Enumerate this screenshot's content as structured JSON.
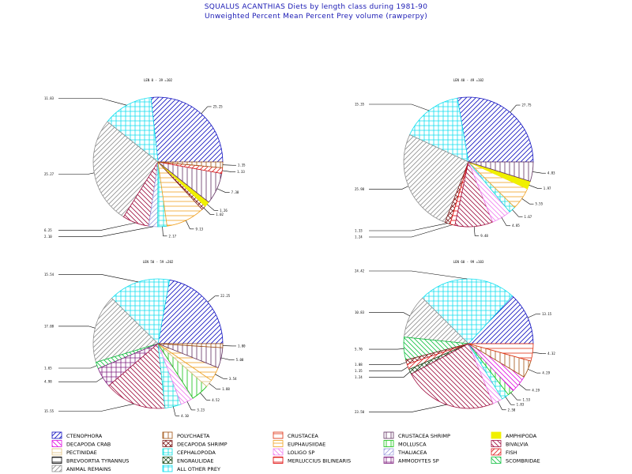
{
  "header": {
    "title": "SQUALUS ACANTHIAS Diets by length class during 1981-90",
    "subtitle": "Unweighted Percent Mean Percent Prey  volume (rawperpy)"
  },
  "colors": {
    "title": "#1a1ab4",
    "CTENOPHORA": "#1010c0",
    "POLYCHAETA": "#a05010",
    "CRUSTACEA": "#e03010",
    "CRUSTACEA SHRIMP": "#603060",
    "AMPHIPODA": "#f0f000",
    "DECAPODA CRAB": "#e010e0",
    "DECAPODA SHRIMP": "#802020",
    "EUPHAUSIIDAE": "#f0a020",
    "MOLLUSCA": "#10c010",
    "BIVALVIA": "#a01040",
    "PECTINIDAE": "#e0c080",
    "CEPHALOPODA": "#10e0e0",
    "LOLIGO SP": "#f080f0",
    "THALIACEA": "#a0a0e0",
    "FISH": "#e02020",
    "BREVOORTIA TYRANNUS": "#000000",
    "ENGRAULIDAE": "#205020",
    "MERLUCCIUS BILINEARIS": "#e00000",
    "AMMODYTES SP": "#802080",
    "SCOMBRIDAE": "#10c040",
    "ANIMAL REMAINS": "#909090",
    "ALL OTHER PREY": "#10e0f0"
  },
  "legend": [
    {
      "name": "CTENOPHORA",
      "pattern": "diag"
    },
    {
      "name": "POLYCHAETA",
      "pattern": "vert"
    },
    {
      "name": "CRUSTACEA",
      "pattern": "horiz"
    },
    {
      "name": "CRUSTACEA SHRIMP",
      "pattern": "vert"
    },
    {
      "name": "AMPHIPODA",
      "pattern": "solid"
    },
    {
      "name": "DECAPODA CRAB",
      "pattern": "diag2"
    },
    {
      "name": "DECAPODA SHRIMP",
      "pattern": "cross"
    },
    {
      "name": "EUPHAUSIIDAE",
      "pattern": "horiz"
    },
    {
      "name": "MOLLUSCA",
      "pattern": "vert"
    },
    {
      "name": "BIVALVIA",
      "pattern": "diag2"
    },
    {
      "name": "PECTINIDAE",
      "pattern": "horiz"
    },
    {
      "name": "CEPHALOPODA",
      "pattern": "grid"
    },
    {
      "name": "LOLIGO SP",
      "pattern": "diag2"
    },
    {
      "name": "THALIACEA",
      "pattern": "diag"
    },
    {
      "name": "FISH",
      "pattern": "diag"
    },
    {
      "name": "BREVOORTIA TYRANNUS",
      "pattern": "horiz"
    },
    {
      "name": "ENGRAULIDAE",
      "pattern": "cross"
    },
    {
      "name": "MERLUCCIUS BILINEARIS",
      "pattern": "horiz"
    },
    {
      "name": "AMMODYTES SP",
      "pattern": "grid"
    },
    {
      "name": "SCOMBRIDAE",
      "pattern": "diag2"
    },
    {
      "name": "ANIMAL REMAINS",
      "pattern": "diag"
    },
    {
      "name": "ALL OTHER PREY",
      "pattern": "grid"
    }
  ],
  "chart_data": [
    {
      "type": "pie",
      "title": "LEN 0 - 39 =102",
      "slices": [
        {
          "category": "CTENOPHORA",
          "value": 25.25,
          "label": "25.25"
        },
        {
          "category": "ALL OTHER PREY",
          "value": 11.83,
          "label": "11.83"
        },
        {
          "category": "ANIMAL REMAINS",
          "value": 25.27,
          "label": "25.27"
        },
        {
          "category": "BIVALVIA",
          "value": 6.25,
          "label": "6.25"
        },
        {
          "category": "THALIACEA",
          "value": 2.1,
          "label": "2.10"
        },
        {
          "category": "CEPHALOPODA",
          "value": 2.17,
          "label": "2.17"
        },
        {
          "category": "EUPHAUSIIDAE",
          "value": 9.13,
          "label": "9.13"
        },
        {
          "category": "DECAPODA SHRIMP",
          "value": 1.02,
          "label": "1.02"
        },
        {
          "category": "AMPHIPODA",
          "value": 1.26,
          "label": "1.26"
        },
        {
          "category": "CRUSTACEA SHRIMP",
          "value": 7.38,
          "label": "7.38"
        },
        {
          "category": "FISH",
          "value": 1.33,
          "label": "1.33"
        },
        {
          "category": "POLYCHAETA",
          "value": 1.35,
          "label": "1.35"
        }
      ]
    },
    {
      "type": "pie",
      "title": "LEN 40 - 49 =102",
      "slices": [
        {
          "category": "CTENOPHORA",
          "value": 27.75,
          "label": "27.75"
        },
        {
          "category": "ALL OTHER PREY",
          "value": 15.35,
          "label": "15.35"
        },
        {
          "category": "ANIMAL REMAINS",
          "value": 25.98,
          "label": "25.98"
        },
        {
          "category": "DECAPODA SHRIMP",
          "value": 1.33,
          "label": "1.33"
        },
        {
          "category": "MERLUCCIUS BILINEARIS",
          "value": 1.24,
          "label": "1.24"
        },
        {
          "category": "BIVALVIA",
          "value": 9.48,
          "label": "9.48"
        },
        {
          "category": "LOLIGO SP",
          "value": 4.85,
          "label": "4.85"
        },
        {
          "category": "CEPHALOPODA",
          "value": 1.67,
          "label": "1.67"
        },
        {
          "category": "EUPHAUSIIDAE",
          "value": 5.55,
          "label": "5.55"
        },
        {
          "category": "AMPHIPODA",
          "value": 1.97,
          "label": "1.97"
        },
        {
          "category": "CRUSTACEA SHRIMP",
          "value": 4.83,
          "label": "4.83"
        }
      ]
    },
    {
      "type": "pie",
      "title": "LEN 50 - 59 =202",
      "slices": [
        {
          "category": "CTENOPHORA",
          "value": 22.25,
          "label": "22.25"
        },
        {
          "category": "ALL OTHER PREY",
          "value": 15.54,
          "label": "15.54"
        },
        {
          "category": "ANIMAL REMAINS",
          "value": 17.08,
          "label": "17.08"
        },
        {
          "category": "SCOMBRIDAE",
          "value": 1.65,
          "label": "1.65"
        },
        {
          "category": "AMMODYTES SP",
          "value": 4.98,
          "label": "4.98"
        },
        {
          "category": "BIVALVIA",
          "value": 15.55,
          "label": "15.55"
        },
        {
          "category": "CEPHALOPODA",
          "value": 4.1,
          "label": "4.10"
        },
        {
          "category": "LOLIGO SP",
          "value": 3.23,
          "label": "3.23"
        },
        {
          "category": "MOLLUSCA",
          "value": 4.52,
          "label": "4.52"
        },
        {
          "category": "PECTINIDAE",
          "value": 1.88,
          "label": "1.88"
        },
        {
          "category": "EUPHAUSIIDAE",
          "value": 3.54,
          "label": "3.54"
        },
        {
          "category": "CRUSTACEA SHRIMP",
          "value": 5.08,
          "label": "5.08"
        },
        {
          "category": "POLYCHAETA",
          "value": 1.0,
          "label": "1.00"
        }
      ]
    },
    {
      "type": "pie",
      "title": "LEN 60 - 99 =103",
      "slices": [
        {
          "category": "CTENOPHORA",
          "value": 13.15,
          "label": "13.15"
        },
        {
          "category": "ALL OTHER PREY",
          "value": 24.42,
          "label": "24.42"
        },
        {
          "category": "ANIMAL REMAINS",
          "value": 10.83,
          "label": "10.83"
        },
        {
          "category": "SCOMBRIDAE",
          "value": 5.7,
          "label": "5.70"
        },
        {
          "category": "DECAPODA SHRIMP",
          "value": 1.08,
          "label": "1.08"
        },
        {
          "category": "FISH",
          "value": 1.35,
          "label": "1.35"
        },
        {
          "category": "ENGRAULIDAE",
          "value": 1.24,
          "label": "1.24"
        },
        {
          "category": "BIVALVIA",
          "value": 23.5,
          "label": "23.50"
        },
        {
          "category": "LOLIGO SP",
          "value": 2.5,
          "label": "2.50"
        },
        {
          "category": "CEPHALOPODA",
          "value": 1.83,
          "label": "1.83"
        },
        {
          "category": "MOLLUSCA",
          "value": 1.53,
          "label": "1.53"
        },
        {
          "category": "DECAPODA CRAB",
          "value": 4.29,
          "label": "4.29"
        },
        {
          "category": "POLYCHAETA",
          "value": 4.29,
          "label": "4.29"
        },
        {
          "category": "CRUSTACEA",
          "value": 4.32,
          "label": "4.32"
        }
      ]
    }
  ]
}
